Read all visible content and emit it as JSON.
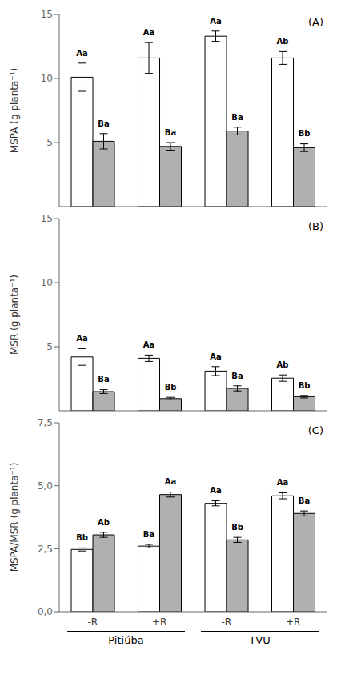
{
  "chart_data": [
    {
      "type": "bar",
      "title": "(A)",
      "ylabel": "MSPA (g planta⁻¹)",
      "categories": [
        "-R",
        "+R",
        "-R",
        "+R"
      ],
      "ylim": [
        0,
        15
      ],
      "yticks": [
        0,
        5,
        10,
        15
      ],
      "grid": false,
      "tick_labels": "y",
      "series": [
        {
          "color": "#ffffff",
          "values": [
            10.1,
            11.6,
            13.3,
            11.6
          ],
          "errors": [
            1.1,
            1.2,
            0.4,
            0.5
          ],
          "letters": [
            "Aa",
            "Aa",
            "Aa",
            "Ab"
          ]
        },
        {
          "color": "#b0b0b0",
          "values": [
            5.1,
            4.7,
            5.9,
            4.6
          ],
          "errors": [
            0.6,
            0.3,
            0.3,
            0.3
          ],
          "letters": [
            "Ba",
            "Ba",
            "Ba",
            "Bb"
          ]
        }
      ]
    },
    {
      "type": "bar",
      "title": "(B)",
      "ylabel": "MSR (g planta⁻¹)",
      "categories": [
        "-R",
        "+R",
        "-R",
        "+R"
      ],
      "ylim": [
        0,
        15
      ],
      "yticks": [
        0,
        5,
        10,
        15
      ],
      "grid": false,
      "tick_labels": "y",
      "series": [
        {
          "color": "#ffffff",
          "values": [
            4.2,
            4.1,
            3.1,
            2.55
          ],
          "errors": [
            0.65,
            0.25,
            0.35,
            0.25
          ],
          "letters": [
            "Aa",
            "Aa",
            "Aa",
            "Ab"
          ]
        },
        {
          "color": "#b0b0b0",
          "values": [
            1.5,
            0.95,
            1.75,
            1.1
          ],
          "errors": [
            0.15,
            0.1,
            0.2,
            0.1
          ],
          "letters": [
            "Ba",
            "Bb",
            "Ba",
            "Bb"
          ]
        }
      ]
    },
    {
      "type": "bar",
      "title": "(C)",
      "ylabel": "MSPA/MSR (g planta⁻¹)",
      "categories": [
        "-R",
        "+R",
        "-R",
        "+R"
      ],
      "x_groups": [
        "Pitiúba",
        "TVU"
      ],
      "ylim": [
        0.0,
        7.5
      ],
      "yticks": [
        {
          "value": 0.0,
          "label": "0,0"
        },
        {
          "value": 2.5,
          "label": "2,5"
        },
        {
          "value": 5.0,
          "label": "5,0"
        },
        {
          "value": 7.5,
          "label": "7,5"
        }
      ],
      "grid": false,
      "series": [
        {
          "color": "#ffffff",
          "values": [
            2.47,
            2.6,
            4.3,
            4.6
          ],
          "errors": [
            0.06,
            0.07,
            0.1,
            0.12
          ],
          "letters": [
            "Bb",
            "Ba",
            "Aa",
            "Aa"
          ]
        },
        {
          "color": "#b0b0b0",
          "values": [
            3.05,
            4.65,
            2.85,
            3.9
          ],
          "errors": [
            0.1,
            0.1,
            0.1,
            0.1
          ],
          "letters": [
            "Ab",
            "Aa",
            "Bb",
            "Ba"
          ]
        }
      ]
    }
  ]
}
